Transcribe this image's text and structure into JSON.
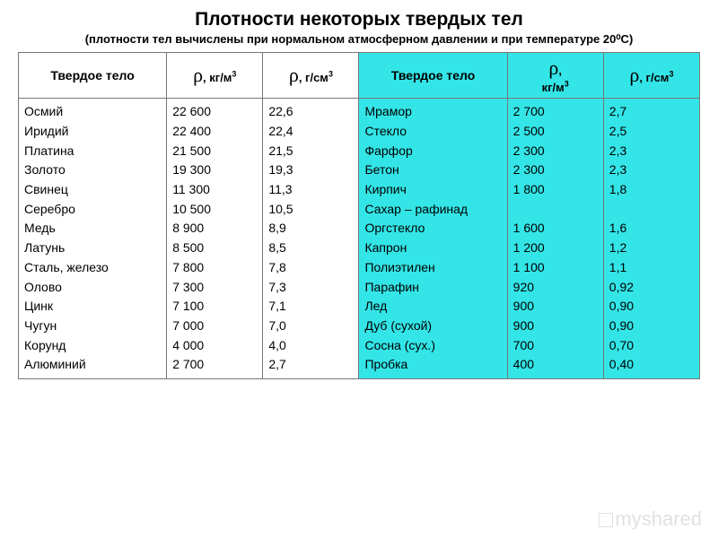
{
  "title": "Плотности некоторых твердых тел",
  "subtitle": "(плотности тел вычислены при нормальном атмосферном давлении и при температуре 20⁰С)",
  "headers": {
    "material_left": "Твердое тело",
    "material_right": "Твердое тело",
    "rho_kg": "ρ, кг/м³",
    "rho_g": "ρ, г/см³"
  },
  "left_rows": [
    {
      "name": "Осмий",
      "kg": "22 600",
      "g": "22,6"
    },
    {
      "name": "Иридий",
      "kg": "22 400",
      "g": "22,4"
    },
    {
      "name": "Платина",
      "kg": "21 500",
      "g": "21,5"
    },
    {
      "name": "Золото",
      "kg": "19 300",
      "g": "19,3"
    },
    {
      "name": "Свинец",
      "kg": "11 300",
      "g": "11,3"
    },
    {
      "name": "Серебро",
      "kg": "10 500",
      "g": "10,5"
    },
    {
      "name": "Медь",
      "kg": "8 900",
      "g": "8,9"
    },
    {
      "name": "Латунь",
      "kg": "8 500",
      "g": "8,5"
    },
    {
      "name": "Сталь, железо",
      "kg": "7 800",
      "g": "7,8"
    },
    {
      "name": "Олово",
      "kg": "7 300",
      "g": "7,3"
    },
    {
      "name": "Цинк",
      "kg": "7 100",
      "g": "7,1"
    },
    {
      "name": "Чугун",
      "kg": "7 000",
      "g": "7,0"
    },
    {
      "name": "Корунд",
      "kg": "4 000",
      "g": "4,0"
    },
    {
      "name": "Алюминий",
      "kg": "2 700",
      "g": "2,7"
    }
  ],
  "right_rows": [
    {
      "name": "Мрамор",
      "kg": "2 700",
      "g": "2,7"
    },
    {
      "name": "Стекло",
      "kg": "2 500",
      "g": "2,5"
    },
    {
      "name": "Фарфор",
      "kg": "2 300",
      "g": "2,3"
    },
    {
      "name": "Бетон",
      "kg": "2 300",
      "g": "2,3"
    },
    {
      "name": "Кирпич",
      "kg": "1 800",
      "g": "1,8"
    },
    {
      "name": "Сахар – рафинад",
      "kg": "",
      "g": ""
    },
    {
      "name": "Оргстекло",
      "kg": "1 600",
      "g": "1,6"
    },
    {
      "name": "Капрон",
      "kg": "1 200",
      "g": "1,2"
    },
    {
      "name": "Полиэтилен",
      "kg": "1 100",
      "g": "1,1"
    },
    {
      "name": "Парафин",
      "kg": "920",
      "g": "0,92"
    },
    {
      "name": "Лед",
      "kg": "900",
      "g": "0,90"
    },
    {
      "name": "Дуб (сухой)",
      "kg": "900",
      "g": "0,90"
    },
    {
      "name": "Сосна (сух.)",
      "kg": "700",
      "g": "0,70"
    },
    {
      "name": "Пробка",
      "kg": "400",
      "g": "0,40"
    }
  ],
  "colors": {
    "right_bg": "#33e5e7",
    "border": "#777777",
    "text": "#000000"
  },
  "watermark": "myshared"
}
